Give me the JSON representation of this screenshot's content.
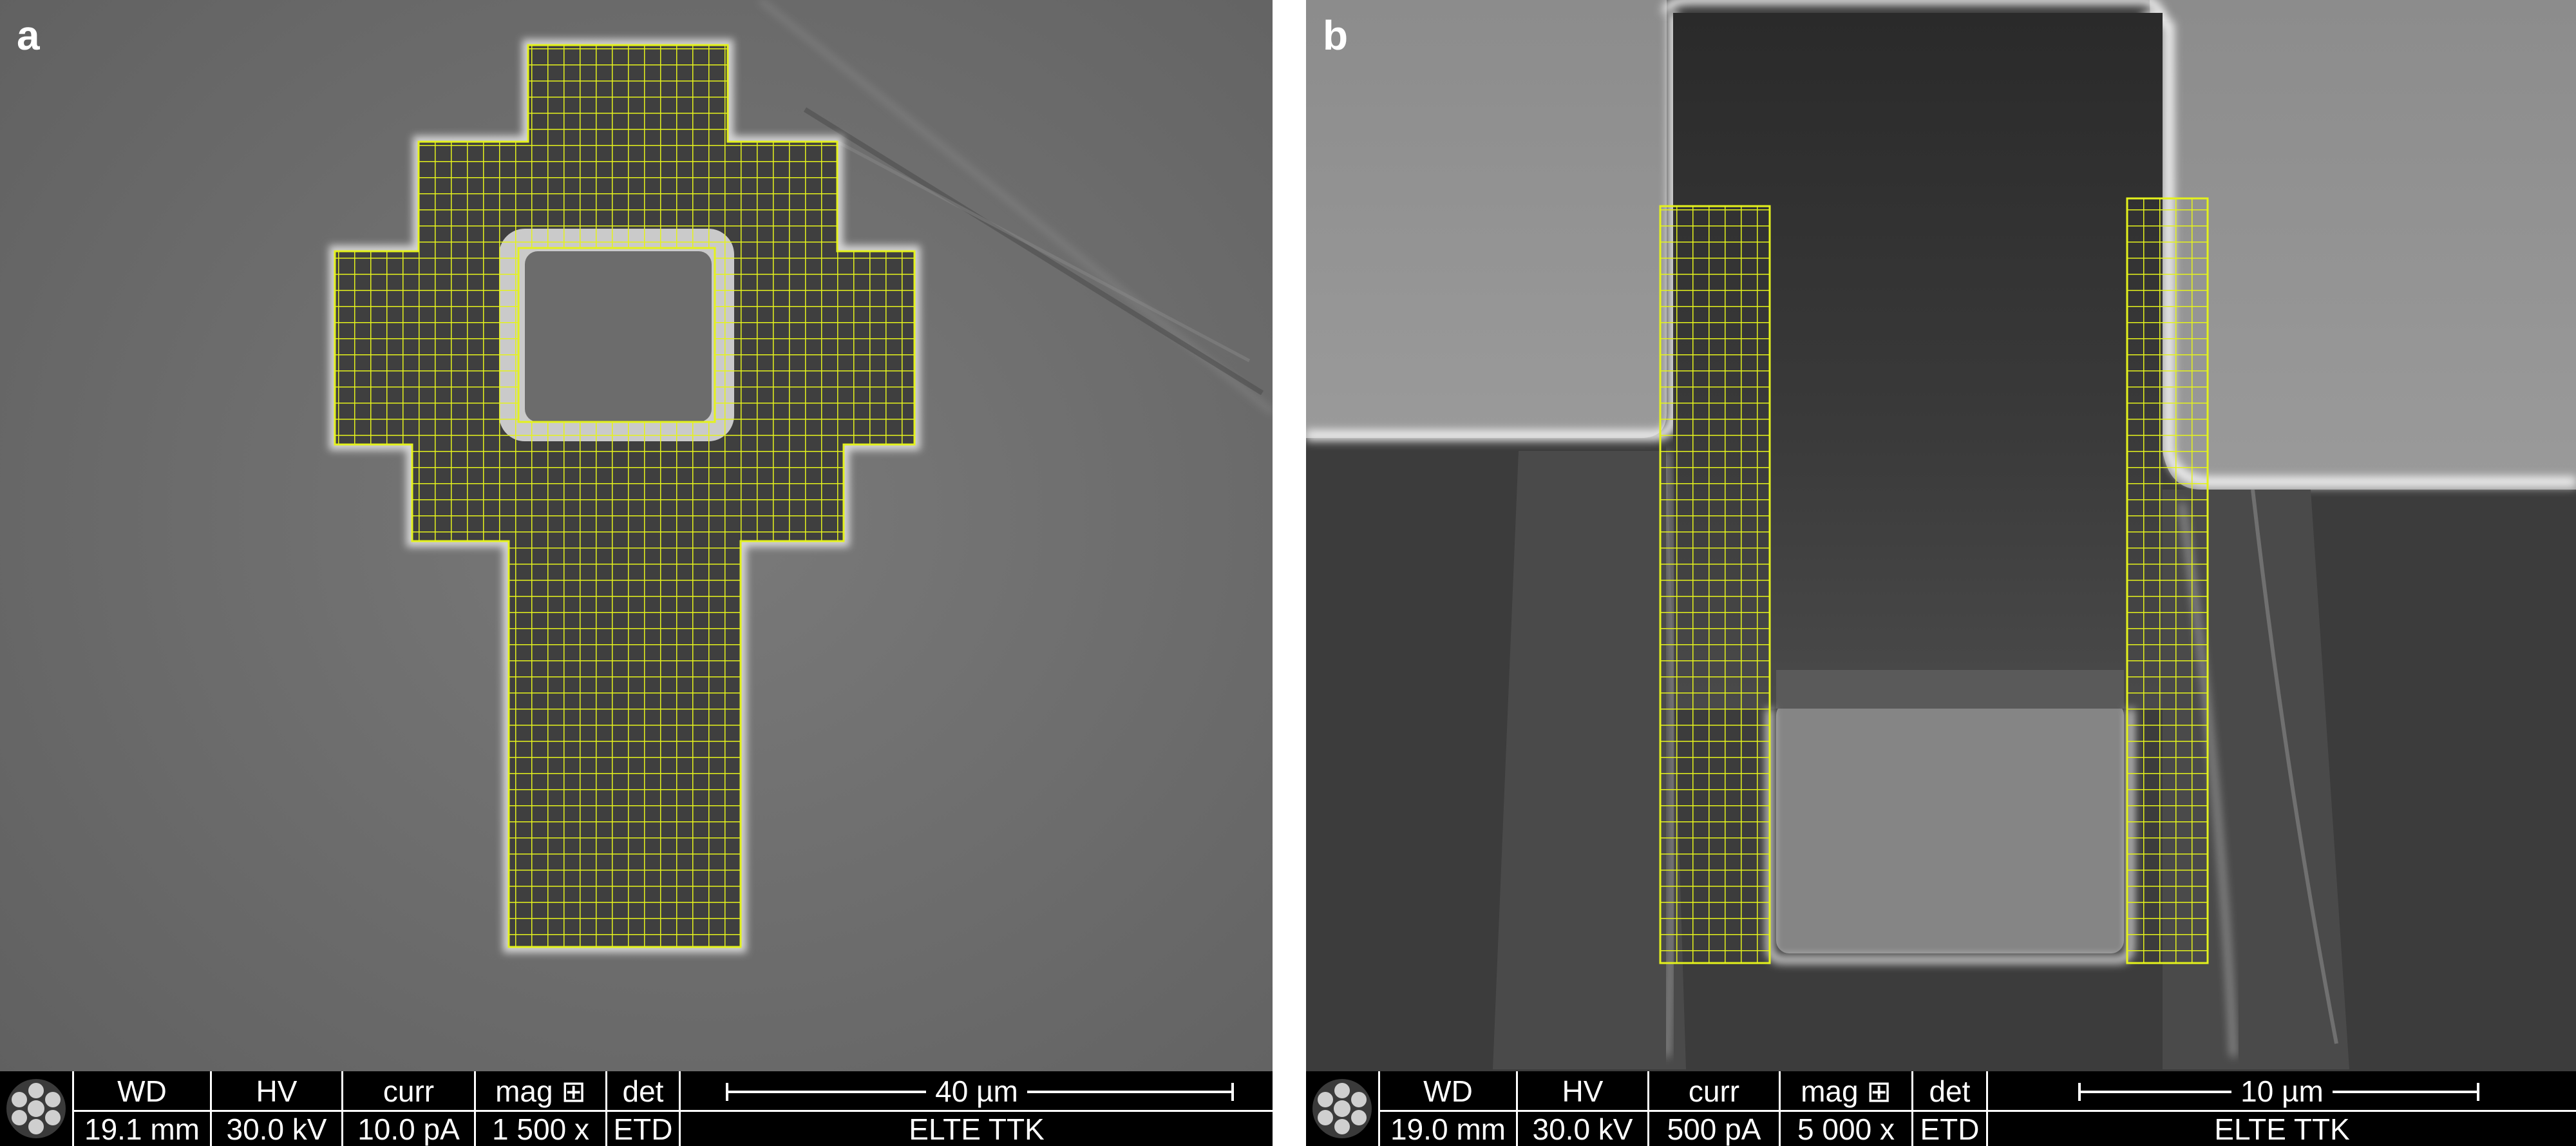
{
  "panels": [
    {
      "letter": "a",
      "databar": {
        "wd_label": "WD",
        "wd_value": "19.1 mm",
        "hv_label": "HV",
        "hv_value": "30.0 kV",
        "curr_label": "curr",
        "curr_value": "10.0 pA",
        "mag_label": "mag ⊞",
        "mag_value": "1 500 x",
        "det_label": "det",
        "det_value": "ETD",
        "scale_label": "40 µm",
        "institution": "ELTE TTK"
      }
    },
    {
      "letter": "b",
      "databar": {
        "wd_label": "WD",
        "wd_value": "19.0 mm",
        "hv_label": "HV",
        "hv_value": "30.0 kV",
        "curr_label": "curr",
        "curr_value": "500 pA",
        "mag_label": "mag ⊞",
        "mag_value": "5 000 x",
        "det_label": "det",
        "det_value": "ETD",
        "scale_label": "10 µm",
        "institution": "ELTE TTK"
      }
    }
  ],
  "colors": {
    "grid": "#e4f21c",
    "databar": "#000000",
    "databar_text": "#ffffff"
  },
  "icons": {
    "logo": "detector-logo-icon"
  }
}
